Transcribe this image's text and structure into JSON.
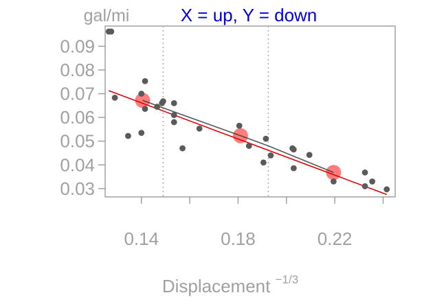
{
  "chart_data": {
    "type": "scatter",
    "title": "X = up, Y = down",
    "title_color": "#0000d8",
    "ylabel": "gal/mi",
    "xlabel": "Displacement",
    "xlabel_exponent": "−1/3",
    "xlim": [
      0.125,
      0.245
    ],
    "ylim": [
      0.0265,
      0.0985
    ],
    "x_ticks": [
      0.14,
      0.18,
      0.22
    ],
    "x_tick_labels": [
      "0.14",
      "0.18",
      "0.22"
    ],
    "x_minor_ticks": [
      0.16,
      0.2,
      0.24
    ],
    "y_ticks": [
      0.03,
      0.04,
      0.05,
      0.06,
      0.07,
      0.08,
      0.09
    ],
    "y_tick_labels": [
      "0.03",
      "0.04",
      "0.05",
      "0.06",
      "0.07",
      "0.08",
      "0.09"
    ],
    "grid": false,
    "reference_lines_x": [
      0.149,
      0.1925
    ],
    "points": [
      {
        "x": 0.1265,
        "y": 0.0962
      },
      {
        "x": 0.1275,
        "y": 0.0962
      },
      {
        "x": 0.129,
        "y": 0.0683
      },
      {
        "x": 0.1345,
        "y": 0.0522
      },
      {
        "x": 0.14,
        "y": 0.07
      },
      {
        "x": 0.14,
        "y": 0.0535
      },
      {
        "x": 0.1415,
        "y": 0.0753
      },
      {
        "x": 0.1415,
        "y": 0.0636
      },
      {
        "x": 0.1465,
        "y": 0.0645
      },
      {
        "x": 0.1485,
        "y": 0.066
      },
      {
        "x": 0.149,
        "y": 0.0668
      },
      {
        "x": 0.1535,
        "y": 0.066
      },
      {
        "x": 0.1535,
        "y": 0.061
      },
      {
        "x": 0.1535,
        "y": 0.058
      },
      {
        "x": 0.157,
        "y": 0.047
      },
      {
        "x": 0.164,
        "y": 0.0553
      },
      {
        "x": 0.1805,
        "y": 0.0565
      },
      {
        "x": 0.1845,
        "y": 0.048
      },
      {
        "x": 0.1905,
        "y": 0.041
      },
      {
        "x": 0.1915,
        "y": 0.051
      },
      {
        "x": 0.1935,
        "y": 0.044
      },
      {
        "x": 0.2025,
        "y": 0.047
      },
      {
        "x": 0.203,
        "y": 0.0465
      },
      {
        "x": 0.203,
        "y": 0.0386
      },
      {
        "x": 0.2095,
        "y": 0.0442
      },
      {
        "x": 0.2195,
        "y": 0.033
      },
      {
        "x": 0.2325,
        "y": 0.0368
      },
      {
        "x": 0.2325,
        "y": 0.031
      },
      {
        "x": 0.2355,
        "y": 0.033
      },
      {
        "x": 0.2415,
        "y": 0.0297
      }
    ],
    "highlight_points": [
      {
        "x": 0.1405,
        "y": 0.0672
      },
      {
        "x": 0.181,
        "y": 0.0523
      },
      {
        "x": 0.2195,
        "y": 0.0368
      }
    ],
    "fit_line": {
      "x": [
        0.1265,
        0.2415
      ],
      "y": [
        0.0713,
        0.0275
      ],
      "color": "#e00000"
    },
    "piecewise_line": {
      "x": [
        0.1405,
        0.149,
        0.181,
        0.1925,
        0.2195
      ],
      "y": [
        0.0672,
        0.064,
        0.0523,
        0.048,
        0.0368
      ],
      "color": "#3a3a3a"
    },
    "colors": {
      "point": "#5a5a5a",
      "highlight": "#ff6f6f",
      "axis": "#9a9a9a",
      "text": "#a0a0a0",
      "reference": "#b0b0b0"
    }
  }
}
